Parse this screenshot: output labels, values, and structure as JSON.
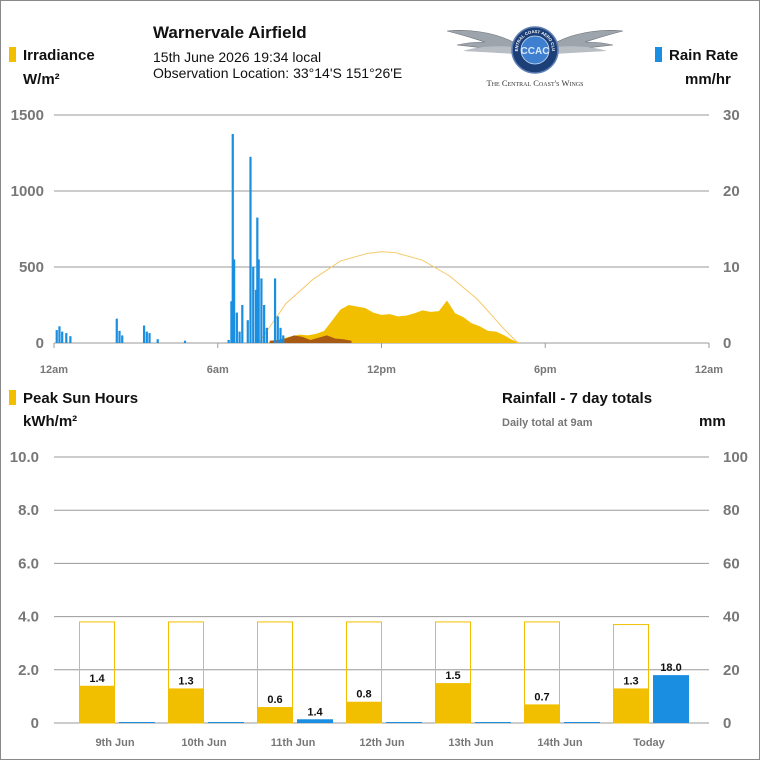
{
  "header": {
    "title": "Warnervale Airfield",
    "datetime": "15th June 2026  19:34 local",
    "location": "Observation Location: 33°14'S 151°26'E",
    "logo_ring_text": "CENTRAL COAST AERO CLUB",
    "logo_monogram": "CCAC",
    "logo_tagline": "The Central Coast's Wings"
  },
  "colors": {
    "sun": "#f2bf00",
    "rain": "#1a8ee0",
    "obscured": "#a85a12",
    "clear_sky_curve": "#f5c96a",
    "grid": "#9a9a9a",
    "axis_text": "#777777"
  },
  "top_chart": {
    "left_legend": "Irradiance",
    "left_unit": "W/m²",
    "right_legend": "Rain Rate",
    "right_unit": "mm/hr"
  },
  "bottom_chart": {
    "left_legend": "Peak Sun Hours",
    "left_unit": "kWh/m²",
    "right_title": "Rainfall - 7 day totals",
    "right_note": "Daily total at 9am",
    "right_unit": "mm"
  },
  "chart_data": [
    {
      "type": "area",
      "title": "",
      "xlabel": "",
      "ylabel": "Irradiance W/m²",
      "y2label": "Rain Rate mm/hr",
      "x_range_hours": [
        0,
        24
      ],
      "x_ticks": [
        {
          "hour": 0,
          "label": "12am"
        },
        {
          "hour": 6,
          "label": "6am"
        },
        {
          "hour": 12,
          "label": "12pm"
        },
        {
          "hour": 18,
          "label": "6pm"
        },
        {
          "hour": 24,
          "label": "12am"
        }
      ],
      "ylim": [
        0,
        1500
      ],
      "y_ticks": [
        "0",
        "500",
        "1000",
        "1500"
      ],
      "y2lim": [
        0,
        30
      ],
      "y2_ticks": [
        "0",
        "10",
        "20",
        "30"
      ],
      "grid": true,
      "series": [
        {
          "name": "Irradiance",
          "x": [
            7.8,
            8.2,
            8.6,
            9.0,
            9.3,
            9.6,
            9.9,
            10.2,
            10.5,
            10.8,
            11.1,
            11.4,
            11.7,
            12.0,
            12.3,
            12.6,
            12.9,
            13.2,
            13.5,
            13.8,
            14.1,
            14.4,
            14.7,
            15.0,
            15.3,
            15.6,
            15.9,
            16.2,
            16.5,
            16.8,
            17.1
          ],
          "y": [
            0,
            20,
            40,
            55,
            50,
            60,
            80,
            150,
            220,
            250,
            240,
            230,
            200,
            185,
            190,
            175,
            180,
            195,
            215,
            205,
            210,
            280,
            195,
            170,
            130,
            110,
            80,
            75,
            50,
            20,
            0
          ]
        },
        {
          "name": "Obscured irradiance",
          "x": [
            7.9,
            8.2,
            8.5,
            8.8,
            9.1,
            9.4,
            9.7,
            10.0,
            10.3,
            10.6,
            10.9
          ],
          "y": [
            15,
            20,
            30,
            50,
            40,
            20,
            35,
            50,
            30,
            25,
            15
          ]
        },
        {
          "name": "Clear sky irradiance",
          "x": [
            7.5,
            8.5,
            9.5,
            10.5,
            11.5,
            12.0,
            12.5,
            13.5,
            14.5,
            15.5,
            16.5,
            17.0
          ],
          "y": [
            0,
            260,
            420,
            540,
            590,
            600,
            595,
            545,
            440,
            290,
            90,
            0
          ]
        },
        {
          "name": "Rain Rate",
          "axis": "right",
          "x": [
            0.1,
            0.2,
            0.3,
            0.45,
            0.6,
            2.3,
            2.4,
            2.5,
            3.3,
            3.4,
            3.5,
            3.8,
            4.8,
            6.4,
            6.5,
            6.55,
            6.6,
            6.7,
            6.8,
            6.9,
            7.1,
            7.2,
            7.3,
            7.4,
            7.45,
            7.5,
            7.6,
            7.7,
            7.8,
            8.1,
            8.2,
            8.3,
            8.4
          ],
          "y": [
            1.7,
            2.2,
            1.5,
            1.3,
            0.9,
            3.2,
            1.6,
            1.0,
            2.3,
            1.5,
            1.3,
            0.5,
            0.3,
            0.4,
            5.5,
            27.5,
            11.0,
            4.0,
            1.5,
            5.0,
            3.0,
            24.5,
            10.0,
            7.0,
            16.5,
            11.0,
            8.5,
            5.0,
            2.0,
            8.5,
            3.5,
            2.0,
            1.0
          ]
        }
      ]
    },
    {
      "type": "bar",
      "title": "Rainfall - 7 day totals",
      "xlabel": "",
      "ylabel": "Peak Sun Hours kWh/m²",
      "y2label": "mm",
      "categories": [
        "9th Jun",
        "10th Jun",
        "11th Jun",
        "12th Jun",
        "13th Jun",
        "14th Jun",
        "Today"
      ],
      "ylim": [
        0,
        10
      ],
      "y_ticks": [
        "0",
        "2.0",
        "4.0",
        "6.0",
        "8.0",
        "10.0"
      ],
      "y2lim": [
        0,
        100
      ],
      "y2_ticks": [
        "0",
        "20",
        "40",
        "60",
        "80",
        "100"
      ],
      "grid": true,
      "series": [
        {
          "name": "Peak Sun Hours",
          "values": [
            1.4,
            1.3,
            0.6,
            0.8,
            1.5,
            0.7,
            1.3
          ],
          "labels": [
            "1.4",
            "1.3",
            "0.6",
            "0.8",
            "1.5",
            "0.7",
            "1.3"
          ]
        },
        {
          "name": "Clear sky sun hours",
          "values": [
            3.8,
            3.8,
            3.8,
            3.8,
            3.8,
            3.8,
            3.7
          ]
        },
        {
          "name": "Rainfall",
          "axis": "right",
          "values": [
            0,
            0,
            1.4,
            0,
            0,
            0,
            18.0
          ],
          "labels": [
            "",
            "",
            "1.4",
            "",
            "",
            "",
            "18.0"
          ]
        }
      ]
    }
  ]
}
